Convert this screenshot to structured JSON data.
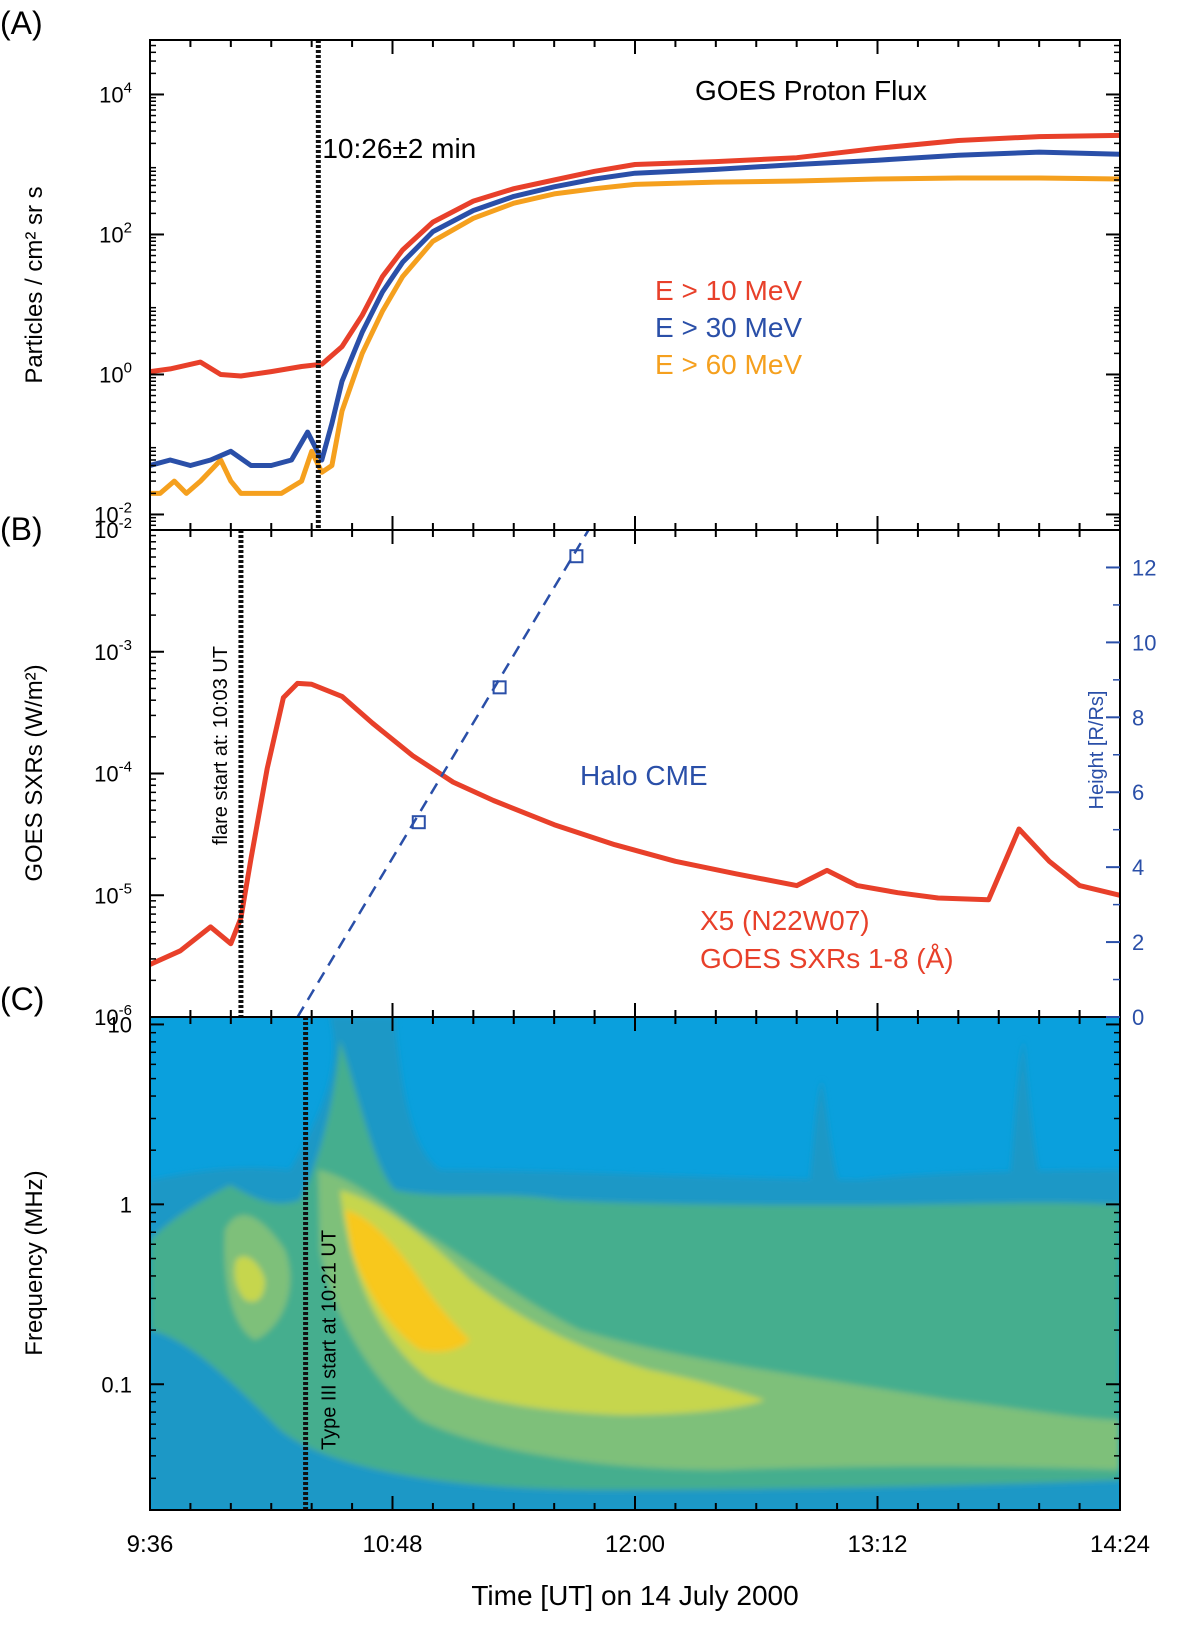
{
  "figure": {
    "panel_labels": [
      "(A)",
      "(B)",
      "(C)"
    ],
    "xaxis_label": "Time [UT] on 14 July 2000",
    "x_range_hours": [
      9.6,
      14.4
    ],
    "x_ticks": [
      {
        "value": 9.6,
        "label": "9:36"
      },
      {
        "value": 10.8,
        "label": "10:48"
      },
      {
        "value": 12.0,
        "label": "12:00"
      },
      {
        "value": 13.2,
        "label": "13:12"
      },
      {
        "value": 14.4,
        "label": "14:24"
      }
    ]
  },
  "chart_data": [
    {
      "panel": "A",
      "type": "line",
      "title": "GOES Proton Flux",
      "ylabel": "Particles / cm² sr s",
      "yscale": "log",
      "ylim": [
        0.006,
        60000
      ],
      "y_ticks": [
        {
          "value": 0.01,
          "base": "10",
          "exp": "-2"
        },
        {
          "value": 1,
          "base": "10",
          "exp": "0"
        },
        {
          "value": 100,
          "base": "10",
          "exp": "2"
        },
        {
          "value": 10000,
          "base": "10",
          "exp": "4"
        }
      ],
      "marker": {
        "x": 10.433,
        "label": "10:26±2 min"
      },
      "series": [
        {
          "name": "E > 10 MeV",
          "color": "#e8402a",
          "x": [
            9.6,
            9.7,
            9.85,
            9.95,
            10.05,
            10.2,
            10.35,
            10.45,
            10.55,
            10.65,
            10.75,
            10.85,
            11.0,
            11.2,
            11.4,
            11.6,
            11.8,
            12.0,
            12.4,
            12.8,
            13.2,
            13.6,
            14.0,
            14.4
          ],
          "y": [
            1.1,
            1.2,
            1.5,
            1.0,
            0.95,
            1.1,
            1.3,
            1.4,
            2.5,
            7,
            25,
            60,
            150,
            300,
            450,
            600,
            800,
            1000,
            1100,
            1250,
            1700,
            2200,
            2500,
            2600
          ]
        },
        {
          "name": "E > 30 MeV",
          "color": "#2a4fa8",
          "x": [
            9.6,
            9.7,
            9.8,
            9.9,
            10.0,
            10.1,
            10.2,
            10.3,
            10.38,
            10.45,
            10.5,
            10.55,
            10.65,
            10.75,
            10.85,
            11.0,
            11.2,
            11.4,
            11.6,
            11.8,
            12.0,
            12.4,
            12.8,
            13.2,
            13.6,
            14.0,
            14.4
          ],
          "y": [
            0.05,
            0.06,
            0.05,
            0.06,
            0.08,
            0.05,
            0.05,
            0.06,
            0.15,
            0.06,
            0.2,
            0.8,
            4,
            15,
            40,
            110,
            220,
            350,
            480,
            620,
            750,
            850,
            1000,
            1150,
            1350,
            1500,
            1400
          ]
        },
        {
          "name": "E > 60 MeV",
          "color": "#f5a01e",
          "x": [
            9.6,
            9.65,
            9.72,
            9.78,
            9.85,
            9.95,
            10.0,
            10.05,
            10.15,
            10.25,
            10.35,
            10.4,
            10.45,
            10.5,
            10.55,
            10.65,
            10.75,
            10.85,
            11.0,
            11.2,
            11.4,
            11.6,
            11.8,
            12.0,
            12.4,
            12.8,
            13.2,
            13.6,
            14.0,
            14.4
          ],
          "y": [
            0.02,
            0.02,
            0.03,
            0.02,
            0.03,
            0.06,
            0.03,
            0.02,
            0.02,
            0.02,
            0.03,
            0.08,
            0.04,
            0.05,
            0.3,
            2,
            8,
            25,
            80,
            170,
            280,
            380,
            450,
            520,
            560,
            580,
            620,
            640,
            640,
            620
          ]
        }
      ]
    },
    {
      "panel": "B",
      "type": "line",
      "ylabel": "GOES SXRs (W/m²)",
      "yscale": "log",
      "ylim": [
        1e-06,
        0.01
      ],
      "y_ticks": [
        {
          "value": 1e-06,
          "base": "10",
          "exp": "-6"
        },
        {
          "value": 1e-05,
          "base": "10",
          "exp": "-5"
        },
        {
          "value": 0.0001,
          "base": "10",
          "exp": "-4"
        },
        {
          "value": 0.001,
          "base": "10",
          "exp": "-3"
        },
        {
          "value": 0.01,
          "base": "10",
          "exp": "-2"
        }
      ],
      "y2label": "Height [R/Rs]",
      "y2lim": [
        0,
        13
      ],
      "y2_ticks": [
        0,
        2,
        4,
        6,
        8,
        10,
        12
      ],
      "marker": {
        "x": 10.05,
        "label": "flare start at: 10:03 UT"
      },
      "sxr_label": "X5 (N22W07)",
      "sxr_sublabel": "GOES SXRs 1-8 (Å)",
      "cme_label": "Halo CME",
      "sxr_series": {
        "name": "GOES SXRs 1-8 (Å)",
        "color": "#e8402a",
        "x": [
          9.6,
          9.75,
          9.9,
          10.0,
          10.05,
          10.1,
          10.18,
          10.26,
          10.33,
          10.4,
          10.55,
          10.7,
          10.9,
          11.1,
          11.3,
          11.6,
          11.9,
          12.2,
          12.5,
          12.8,
          12.95,
          13.1,
          13.3,
          13.5,
          13.75,
          13.9,
          14.05,
          14.2,
          14.4
        ],
        "y": [
          2.7e-06,
          3.5e-06,
          5.5e-06,
          4e-06,
          6.5e-06,
          2e-05,
          0.00011,
          0.00042,
          0.00055,
          0.00054,
          0.00043,
          0.00026,
          0.00014,
          8.5e-05,
          6e-05,
          3.8e-05,
          2.6e-05,
          1.9e-05,
          1.5e-05,
          1.2e-05,
          1.6e-05,
          1.2e-05,
          1.05e-05,
          9.5e-06,
          9.2e-06,
          3.5e-05,
          1.9e-05,
          1.2e-05,
          1e-05
        ]
      },
      "cme_height": {
        "name": "Halo CME",
        "color": "#2a4fa8",
        "points": [
          [
            10.93,
            5.2
          ],
          [
            11.33,
            8.8
          ],
          [
            11.71,
            12.3
          ]
        ],
        "fit": [
          [
            10.33,
            0
          ],
          [
            11.77,
            13
          ]
        ]
      }
    },
    {
      "panel": "C",
      "type": "heatmap",
      "ylabel": "Frequency (MHz)",
      "yscale": "log",
      "ylim": [
        0.02,
        11
      ],
      "y_ticks": [
        {
          "value": 0.1,
          "label": "0.1"
        },
        {
          "value": 1,
          "label": "1"
        },
        {
          "value": 10,
          "label": "10"
        }
      ],
      "marker": {
        "x": 10.37,
        "label": "Type III start at 10:21 UT"
      },
      "colors": {
        "background": "#0aa0dd",
        "l1": "#1b98c6",
        "l2": "#45ae8e",
        "l3": "#7ec07a",
        "l4": "#c6d64e",
        "l5": "#f8c81c"
      }
    }
  ]
}
